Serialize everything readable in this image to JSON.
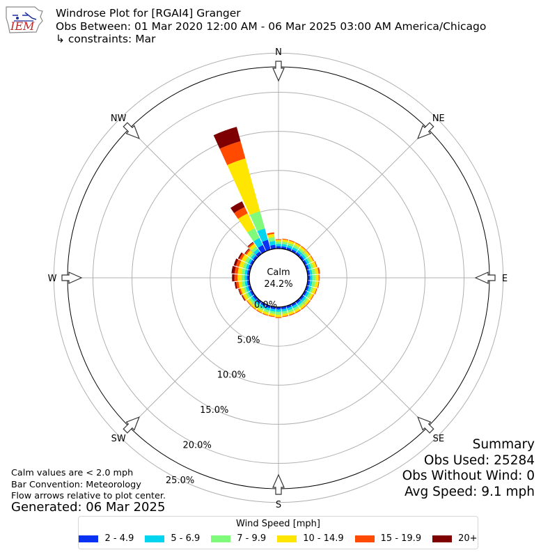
{
  "logo": {
    "text": "IEM"
  },
  "header": {
    "title": "Windrose Plot for [RGAI4] Granger",
    "subtitle": "Obs Between: 01 Mar 2020 12:00 AM - 06 Mar 2025 03:00 AM America/Chicago",
    "constraints": "↳ constraints: Mar"
  },
  "summary": {
    "heading": "Summary",
    "obs_used": "Obs Used: 25284",
    "obs_without_wind": "Obs Without Wind: 0",
    "avg_speed": "Avg Speed: 9.1 mph"
  },
  "notes": {
    "calm": "Calm values are < 2.0 mph",
    "convention": "Bar Convention: Meteorology",
    "flow": "Flow arrows relative to plot center."
  },
  "generated": "Generated: 06 Mar 2025",
  "legend": {
    "title": "Wind Speed [mph]",
    "items": [
      {
        "label": "2 - 4.9",
        "color": "#0a32f4"
      },
      {
        "label": "5 - 6.9",
        "color": "#00d4ee"
      },
      {
        "label": "7 - 9.9",
        "color": "#7ffa7a"
      },
      {
        "label": "10 - 14.9",
        "color": "#ffe600"
      },
      {
        "label": "15 - 19.9",
        "color": "#ff4a00"
      },
      {
        "label": "20+",
        "color": "#7f0000"
      }
    ]
  },
  "chart_data": {
    "type": "windrose",
    "calm_label": "Calm",
    "calm_value": "24.2%",
    "radial_ticks": [
      "0.0%",
      "5.0%",
      "10.0%",
      "15.0%",
      "20.0%",
      "25.0%"
    ],
    "rmax": 27,
    "calm_offset": 3.75,
    "compass_labels": [
      "N",
      "NE",
      "E",
      "SE",
      "S",
      "SW",
      "W",
      "NW"
    ],
    "bin_colors": [
      "#0a32f4",
      "#00d4ee",
      "#7ffa7a",
      "#ffe600",
      "#ff4a00",
      "#7f0000"
    ],
    "sectors": [
      {
        "dir": 0,
        "values": [
          0.3,
          0.3,
          0.3,
          0.2,
          0.1,
          0.0
        ]
      },
      {
        "dir": 10,
        "values": [
          0.3,
          0.3,
          0.3,
          0.3,
          0.1,
          0.0
        ]
      },
      {
        "dir": 20,
        "values": [
          0.3,
          0.3,
          0.3,
          0.3,
          0.1,
          0.0
        ]
      },
      {
        "dir": 30,
        "values": [
          0.3,
          0.3,
          0.3,
          0.3,
          0.1,
          0.0
        ]
      },
      {
        "dir": 40,
        "values": [
          0.3,
          0.3,
          0.3,
          0.3,
          0.1,
          0.0
        ]
      },
      {
        "dir": 50,
        "values": [
          0.3,
          0.3,
          0.3,
          0.3,
          0.1,
          0.0
        ]
      },
      {
        "dir": 60,
        "values": [
          0.3,
          0.3,
          0.3,
          0.3,
          0.1,
          0.0
        ]
      },
      {
        "dir": 70,
        "values": [
          0.3,
          0.3,
          0.3,
          0.4,
          0.1,
          0.0
        ]
      },
      {
        "dir": 80,
        "values": [
          0.3,
          0.3,
          0.4,
          0.4,
          0.2,
          0.0
        ]
      },
      {
        "dir": 90,
        "values": [
          0.3,
          0.3,
          0.4,
          0.4,
          0.1,
          0.0
        ]
      },
      {
        "dir": 100,
        "values": [
          0.3,
          0.3,
          0.4,
          0.4,
          0.1,
          0.0
        ]
      },
      {
        "dir": 110,
        "values": [
          0.3,
          0.3,
          0.3,
          0.4,
          0.1,
          0.0
        ]
      },
      {
        "dir": 120,
        "values": [
          0.3,
          0.3,
          0.3,
          0.3,
          0.1,
          0.0
        ]
      },
      {
        "dir": 130,
        "values": [
          0.3,
          0.3,
          0.3,
          0.3,
          0.1,
          0.0
        ]
      },
      {
        "dir": 140,
        "values": [
          0.3,
          0.3,
          0.3,
          0.3,
          0.1,
          0.0
        ]
      },
      {
        "dir": 150,
        "values": [
          0.3,
          0.3,
          0.3,
          0.3,
          0.1,
          0.0
        ]
      },
      {
        "dir": 160,
        "values": [
          0.3,
          0.3,
          0.3,
          0.3,
          0.1,
          0.0
        ]
      },
      {
        "dir": 170,
        "values": [
          0.3,
          0.3,
          0.3,
          0.3,
          0.1,
          0.0
        ]
      },
      {
        "dir": 180,
        "values": [
          0.3,
          0.3,
          0.4,
          0.3,
          0.1,
          0.0
        ]
      },
      {
        "dir": 190,
        "values": [
          0.3,
          0.3,
          0.3,
          0.3,
          0.1,
          0.0
        ]
      },
      {
        "dir": 200,
        "values": [
          0.3,
          0.3,
          0.3,
          0.3,
          0.1,
          0.0
        ]
      },
      {
        "dir": 210,
        "values": [
          0.3,
          0.3,
          0.3,
          0.3,
          0.1,
          0.0
        ]
      },
      {
        "dir": 220,
        "values": [
          0.3,
          0.3,
          0.3,
          0.3,
          0.1,
          0.0
        ]
      },
      {
        "dir": 230,
        "values": [
          0.3,
          0.3,
          0.3,
          0.3,
          0.1,
          0.0
        ]
      },
      {
        "dir": 240,
        "values": [
          0.3,
          0.3,
          0.3,
          0.4,
          0.1,
          0.1
        ]
      },
      {
        "dir": 250,
        "values": [
          0.3,
          0.3,
          0.3,
          0.4,
          0.2,
          0.1
        ]
      },
      {
        "dir": 260,
        "values": [
          0.3,
          0.3,
          0.4,
          0.4,
          0.3,
          0.2
        ]
      },
      {
        "dir": 270,
        "values": [
          0.3,
          0.3,
          0.4,
          0.5,
          0.4,
          0.3
        ]
      },
      {
        "dir": 280,
        "values": [
          0.3,
          0.3,
          0.4,
          0.5,
          0.4,
          0.4
        ]
      },
      {
        "dir": 290,
        "values": [
          0.3,
          0.3,
          0.4,
          0.5,
          0.4,
          0.3
        ]
      },
      {
        "dir": 300,
        "values": [
          0.3,
          0.3,
          0.4,
          0.5,
          0.3,
          0.2
        ]
      },
      {
        "dir": 310,
        "values": [
          0.3,
          0.3,
          0.3,
          0.4,
          0.2,
          0.1
        ]
      },
      {
        "dir": 320,
        "values": [
          0.4,
          0.4,
          0.4,
          0.4,
          0.2,
          0.1
        ]
      },
      {
        "dir": 330,
        "values": [
          0.9,
          1.0,
          1.4,
          2.1,
          0.9,
          0.8
        ]
      },
      {
        "dir": 340,
        "values": [
          1.3,
          1.5,
          2.3,
          7.0,
          2.3,
          1.9
        ]
      },
      {
        "dir": 350,
        "values": [
          0.5,
          0.5,
          0.5,
          0.4,
          0.2,
          0.0
        ]
      }
    ]
  }
}
